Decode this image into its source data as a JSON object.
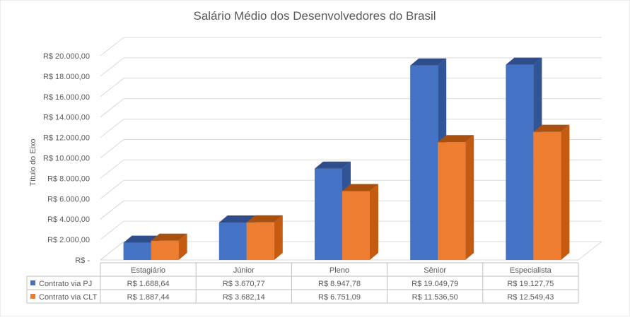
{
  "chart_data": {
    "type": "bar",
    "title": "Salário Médio dos Desenvolvedores do Brasil",
    "ylabel": "Título do Eixo",
    "xlabel": "",
    "categories": [
      "Estagiário",
      "Júnior",
      "Pleno",
      "Sênior",
      "Especialista"
    ],
    "series": [
      {
        "name": "Contrato via PJ",
        "values": [
          1688.64,
          3670.77,
          8947.78,
          19049.79,
          19127.75
        ],
        "labels": [
          "R$ 1.688,64",
          "R$ 3.670,77",
          "R$ 8.947,78",
          "R$ 19.049,79",
          "R$ 19.127,75"
        ],
        "color": "#4472C4",
        "side_color": "#2F5597",
        "top_color": "#2E4D8A"
      },
      {
        "name": "Contrato via CLT",
        "values": [
          1887.44,
          3682.14,
          6751.09,
          11536.5,
          12549.43
        ],
        "labels": [
          "R$ 1.887,44",
          "R$ 3.682,14",
          "R$ 6.751,09",
          "R$ 11.536,50",
          "R$ 12.549,43"
        ],
        "color": "#ED7D31",
        "side_color": "#C55A11",
        "top_color": "#A9500F"
      }
    ],
    "yticks": [
      {
        "value": 0,
        "label": "R$ -"
      },
      {
        "value": 2000,
        "label": "R$ 2.000,00"
      },
      {
        "value": 4000,
        "label": "R$ 4.000,00"
      },
      {
        "value": 6000,
        "label": "R$ 6.000,00"
      },
      {
        "value": 8000,
        "label": "R$ 8.000,00"
      },
      {
        "value": 10000,
        "label": "R$ 10.000,00"
      },
      {
        "value": 12000,
        "label": "R$ 12.000,00"
      },
      {
        "value": 14000,
        "label": "R$ 14.000,00"
      },
      {
        "value": 16000,
        "label": "R$ 16.000,00"
      },
      {
        "value": 18000,
        "label": "R$ 18.000,00"
      },
      {
        "value": 20000,
        "label": "R$ 20.000,00"
      }
    ],
    "ylim": [
      0,
      20000
    ],
    "grid": true,
    "legend": "data-table",
    "style": "3d-clustered-column"
  }
}
